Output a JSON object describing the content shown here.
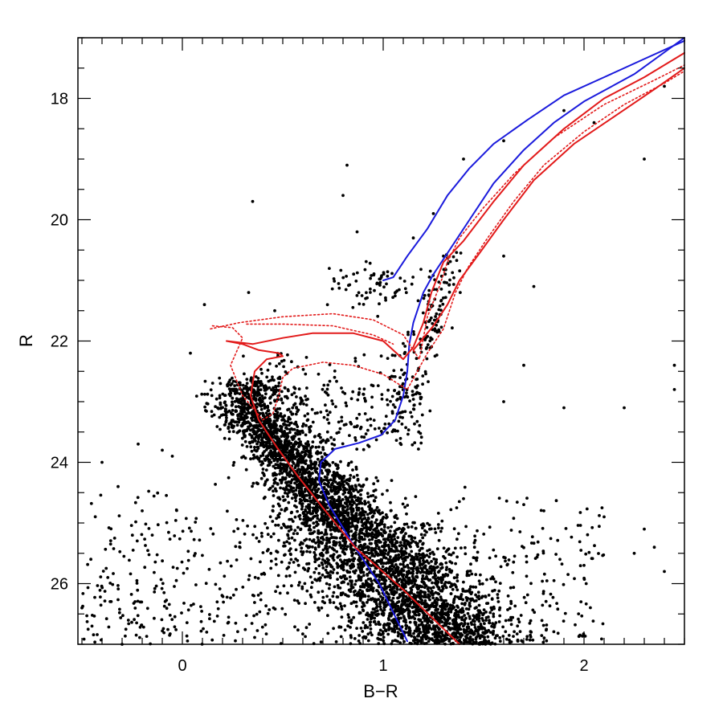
{
  "chart_data": {
    "type": "scatter",
    "xlabel": "B−R",
    "ylabel": "R",
    "xlim": [
      -0.52,
      2.5
    ],
    "ylim": [
      27.0,
      17.0
    ],
    "y_inverted": true,
    "grid": false,
    "x_ticks": [
      {
        "value": 0,
        "label": "0"
      },
      {
        "value": 1,
        "label": "1"
      },
      {
        "value": 2,
        "label": "2"
      }
    ],
    "y_ticks": [
      {
        "value": 18,
        "label": "18"
      },
      {
        "value": 20,
        "label": "20"
      },
      {
        "value": 22,
        "label": "22"
      },
      {
        "value": 24,
        "label": "24"
      },
      {
        "value": 26,
        "label": "26"
      }
    ],
    "x_minor_step": 0.1,
    "y_minor_step": 0.5,
    "colors": {
      "points": "#000000",
      "blue": "#1a1adc",
      "red": "#e21a1a"
    },
    "series": [
      {
        "kind": "scatter",
        "color": "#000000",
        "points": [
          [
            1.6,
            18.7
          ],
          [
            1.9,
            18.2
          ],
          [
            2.05,
            18.4
          ],
          [
            1.4,
            19.0
          ],
          [
            0.82,
            19.1
          ],
          [
            0.8,
            19.6
          ],
          [
            0.35,
            19.7
          ],
          [
            1.25,
            19.9
          ],
          [
            0.87,
            20.2
          ],
          [
            1.6,
            20.6
          ],
          [
            1.75,
            21.1
          ],
          [
            0.33,
            21.2
          ],
          [
            0.11,
            21.4
          ],
          [
            0.46,
            21.5
          ],
          [
            2.3,
            19.0
          ],
          [
            2.4,
            17.8
          ],
          [
            1.15,
            20.3
          ],
          [
            1.3,
            20.6
          ],
          [
            1.7,
            22.4
          ],
          [
            1.6,
            23.0
          ],
          [
            1.9,
            23.1
          ],
          [
            2.2,
            23.1
          ],
          [
            2.45,
            22.4
          ],
          [
            2.45,
            22.8
          ],
          [
            1.4,
            24.6
          ],
          [
            1.8,
            24.8
          ],
          [
            2.1,
            24.9
          ],
          [
            2.3,
            25.1
          ],
          [
            2.25,
            25.5
          ],
          [
            2.0,
            25.7
          ],
          [
            1.88,
            25.6
          ],
          [
            2.4,
            25.8
          ],
          [
            2.35,
            25.4
          ],
          [
            -0.22,
            23.7
          ],
          [
            -0.4,
            24.0
          ],
          [
            -0.32,
            24.4
          ],
          [
            -0.05,
            23.9
          ],
          [
            0.04,
            22.2
          ],
          [
            -0.45,
            26.7
          ],
          [
            -0.3,
            27.0
          ],
          [
            -0.5,
            26.4
          ],
          [
            -0.2,
            24.8
          ],
          [
            -0.15,
            25.2
          ],
          [
            -0.1,
            23.8
          ]
        ]
      },
      {
        "kind": "line",
        "style": "solid",
        "color": "#1a1adc",
        "points": [
          [
            1.12,
            26.95
          ],
          [
            0.98,
            26.0
          ],
          [
            0.84,
            25.3
          ],
          [
            0.73,
            24.7
          ],
          [
            0.68,
            24.3
          ],
          [
            0.69,
            24.0
          ],
          [
            0.76,
            23.78
          ],
          [
            0.88,
            23.68
          ],
          [
            0.99,
            23.55
          ],
          [
            1.06,
            23.3
          ],
          [
            1.1,
            22.9
          ],
          [
            1.12,
            22.5
          ],
          [
            1.13,
            22.05
          ],
          [
            1.15,
            21.7
          ],
          [
            1.2,
            21.2
          ],
          [
            1.25,
            20.9
          ],
          [
            1.33,
            20.5
          ],
          [
            1.43,
            20.0
          ],
          [
            1.55,
            19.4
          ],
          [
            1.7,
            18.85
          ],
          [
            1.85,
            18.4
          ],
          [
            2.0,
            18.05
          ],
          [
            2.25,
            17.6
          ],
          [
            2.5,
            17.0
          ]
        ]
      },
      {
        "kind": "line",
        "style": "solid",
        "color": "#1a1adc",
        "points": [
          [
            1.0,
            21.0
          ],
          [
            1.05,
            20.95
          ],
          [
            1.12,
            20.6
          ],
          [
            1.22,
            20.15
          ],
          [
            1.32,
            19.6
          ],
          [
            1.43,
            19.15
          ],
          [
            1.55,
            18.75
          ],
          [
            1.72,
            18.35
          ],
          [
            1.9,
            17.95
          ],
          [
            2.1,
            17.65
          ],
          [
            2.3,
            17.35
          ],
          [
            2.5,
            17.05
          ]
        ]
      },
      {
        "kind": "line",
        "style": "solid",
        "color": "#e21a1a",
        "points": [
          [
            1.38,
            27.0
          ],
          [
            1.1,
            26.1
          ],
          [
            0.86,
            25.4
          ],
          [
            0.7,
            24.75
          ],
          [
            0.58,
            24.25
          ],
          [
            0.47,
            23.75
          ],
          [
            0.38,
            23.3
          ],
          [
            0.34,
            22.9
          ],
          [
            0.36,
            22.5
          ],
          [
            0.42,
            22.3
          ],
          [
            0.5,
            22.25
          ],
          [
            0.48,
            22.2
          ],
          [
            0.38,
            22.15
          ],
          [
            0.3,
            22.05
          ],
          [
            0.22,
            22.0
          ],
          [
            0.35,
            22.05
          ],
          [
            0.5,
            21.95
          ],
          [
            0.65,
            21.87
          ],
          [
            0.85,
            21.87
          ],
          [
            1.0,
            22.0
          ],
          [
            1.1,
            22.3
          ],
          [
            1.15,
            22.1
          ],
          [
            1.2,
            21.7
          ],
          [
            1.24,
            21.2
          ],
          [
            1.3,
            20.7
          ],
          [
            1.4,
            20.35
          ],
          [
            1.55,
            19.7
          ],
          [
            1.7,
            19.1
          ],
          [
            1.9,
            18.5
          ],
          [
            2.1,
            18.0
          ],
          [
            2.3,
            17.65
          ],
          [
            2.5,
            17.25
          ]
        ]
      },
      {
        "kind": "line",
        "style": "solid",
        "color": "#e21a1a",
        "points": [
          [
            1.15,
            22.15
          ],
          [
            1.25,
            21.75
          ],
          [
            1.32,
            21.4
          ],
          [
            1.38,
            21.0
          ],
          [
            1.48,
            20.55
          ],
          [
            1.6,
            20.0
          ],
          [
            1.75,
            19.35
          ],
          [
            1.95,
            18.75
          ],
          [
            2.15,
            18.3
          ],
          [
            2.35,
            17.85
          ],
          [
            2.5,
            17.5
          ]
        ]
      },
      {
        "kind": "line",
        "style": "dotted",
        "color": "#e21a1a",
        "points": [
          [
            0.14,
            21.8
          ],
          [
            0.28,
            21.7
          ],
          [
            0.5,
            21.6
          ],
          [
            0.75,
            21.55
          ],
          [
            0.95,
            21.65
          ],
          [
            1.1,
            21.9
          ],
          [
            1.18,
            22.3
          ],
          [
            1.22,
            21.6
          ],
          [
            1.28,
            21.1
          ],
          [
            1.32,
            20.7
          ],
          [
            1.38,
            20.3
          ],
          [
            1.5,
            19.8
          ],
          [
            1.65,
            19.25
          ],
          [
            1.85,
            18.65
          ],
          [
            2.1,
            18.1
          ],
          [
            2.35,
            17.7
          ],
          [
            2.5,
            17.45
          ]
        ]
      },
      {
        "kind": "line",
        "style": "dotted",
        "color": "#e21a1a",
        "points": [
          [
            0.15,
            21.75
          ],
          [
            0.25,
            21.78
          ],
          [
            0.3,
            21.95
          ],
          [
            0.24,
            22.4
          ],
          [
            0.3,
            22.9
          ],
          [
            0.4,
            23.3
          ],
          [
            0.45,
            23.2
          ],
          [
            0.48,
            22.9
          ],
          [
            0.5,
            22.6
          ],
          [
            0.55,
            22.45
          ],
          [
            0.7,
            22.35
          ],
          [
            0.85,
            22.4
          ],
          [
            1.0,
            22.55
          ],
          [
            1.12,
            22.8
          ],
          [
            1.22,
            22.2
          ],
          [
            1.3,
            21.8
          ],
          [
            1.36,
            21.2
          ],
          [
            1.42,
            20.8
          ],
          [
            1.52,
            20.3
          ],
          [
            1.65,
            19.7
          ],
          [
            1.8,
            19.1
          ],
          [
            2.0,
            18.55
          ],
          [
            2.2,
            18.1
          ],
          [
            2.4,
            17.75
          ],
          [
            2.5,
            17.55
          ]
        ]
      },
      {
        "kind": "line",
        "style": "dotted",
        "color": "#e21a1a",
        "points": [
          [
            0.32,
            21.72
          ],
          [
            0.5,
            21.72
          ],
          [
            0.75,
            21.75
          ],
          [
            0.95,
            21.9
          ],
          [
            1.05,
            22.05
          ]
        ]
      }
    ]
  }
}
